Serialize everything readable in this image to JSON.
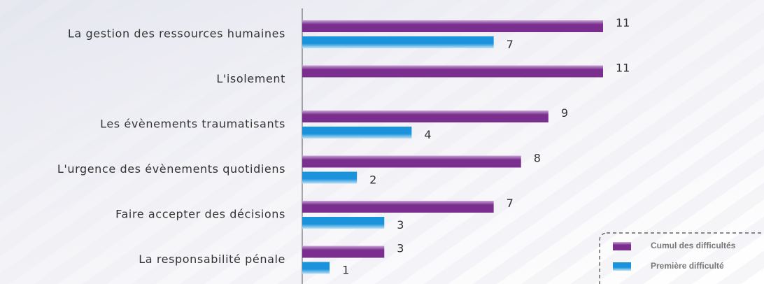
{
  "chart_data": {
    "type": "hbar",
    "categories": [
      "La gestion des ressources humaines",
      "L'isolement",
      "Les évènements traumatisants",
      "L'urgence des évènements quotidiens",
      "Faire accepter des décisions",
      "La responsabilité pénale"
    ],
    "series": [
      {
        "name": "Cumul des difficultés",
        "color": "#7a2e8e",
        "values": [
          11,
          11,
          9,
          8,
          7,
          3
        ]
      },
      {
        "name": "Première difficulté",
        "color": "#1a93dc",
        "values": [
          7,
          null,
          4,
          2,
          3,
          1
        ]
      }
    ],
    "xlim": [
      0,
      11
    ],
    "legend": "bottom-right"
  }
}
